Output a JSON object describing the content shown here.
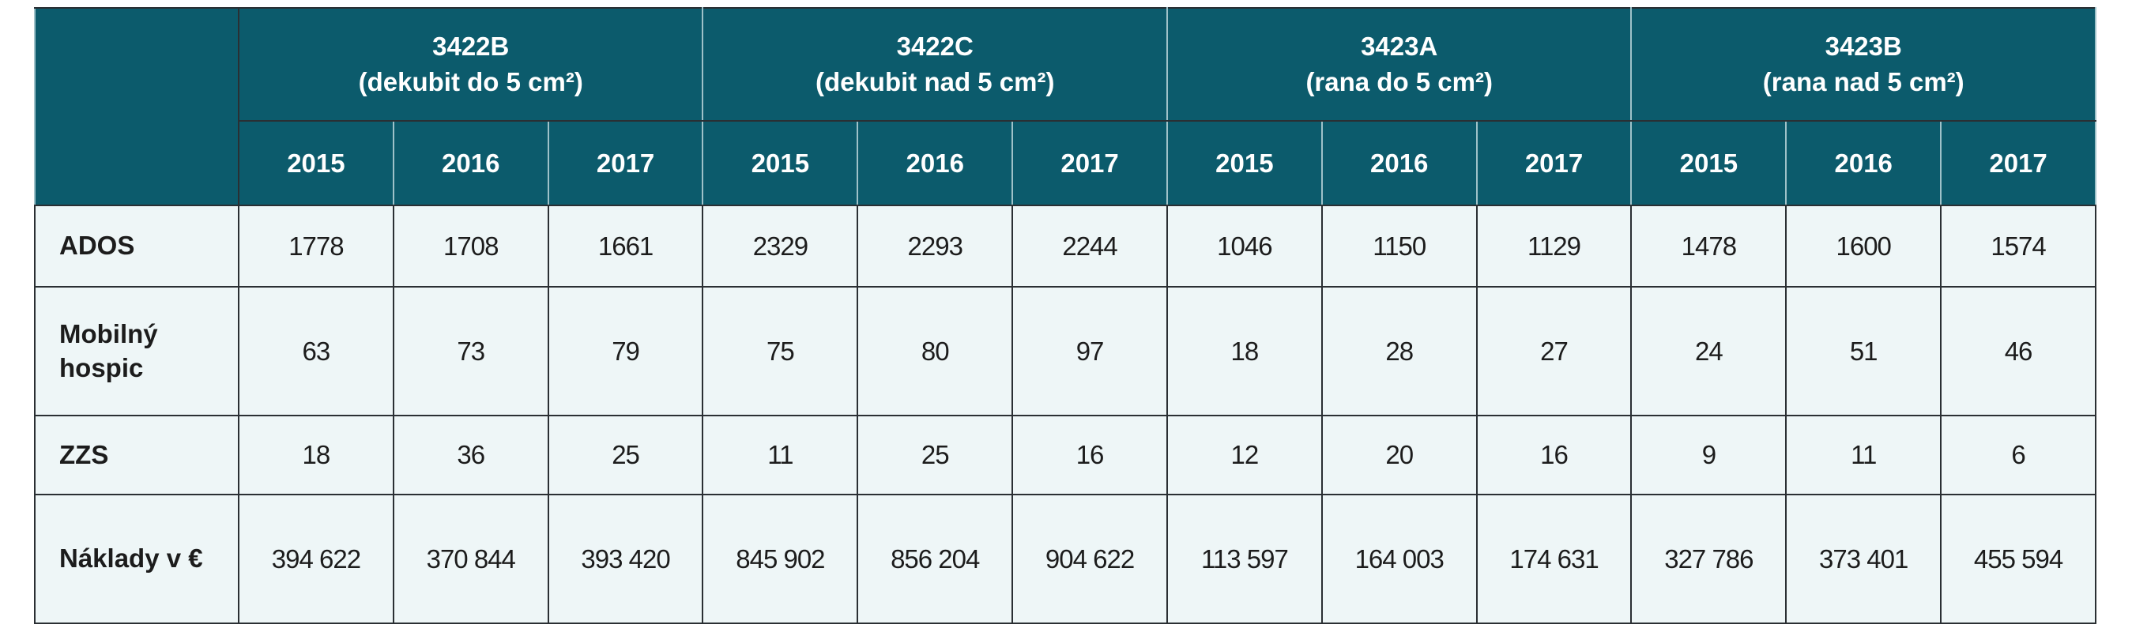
{
  "table": {
    "groups": [
      {
        "code": "3422B",
        "desc": "(dekubit do 5 cm²)",
        "years": [
          "2015",
          "2016",
          "2017"
        ]
      },
      {
        "code": "3422C",
        "desc": "(dekubit nad 5 cm²)",
        "years": [
          "2015",
          "2016",
          "2017"
        ]
      },
      {
        "code": "3423A",
        "desc": "(rana do 5 cm²)",
        "years": [
          "2015",
          "2016",
          "2017"
        ]
      },
      {
        "code": "3423B",
        "desc": "(rana nad 5 cm²)",
        "years": [
          "2015",
          "2016",
          "2017"
        ]
      }
    ],
    "rows": [
      {
        "label": "ADOS",
        "values": [
          1778,
          1708,
          1661,
          2329,
          2293,
          2244,
          1046,
          1150,
          1129,
          1478,
          1600,
          1574
        ]
      },
      {
        "label": "Mobilný hospic",
        "values": [
          63,
          73,
          79,
          75,
          80,
          97,
          18,
          28,
          27,
          24,
          51,
          46
        ]
      },
      {
        "label": "ZZS",
        "values": [
          18,
          36,
          25,
          11,
          25,
          16,
          12,
          20,
          16,
          9,
          11,
          6
        ]
      },
      {
        "label": "Náklady v €",
        "values": [
          "394 622",
          "370 844",
          "393 420",
          "845 902",
          "856 204",
          "904 622",
          "113 597",
          "164 003",
          "174 631",
          "327 786",
          "373 401",
          "455 594"
        ]
      }
    ]
  }
}
